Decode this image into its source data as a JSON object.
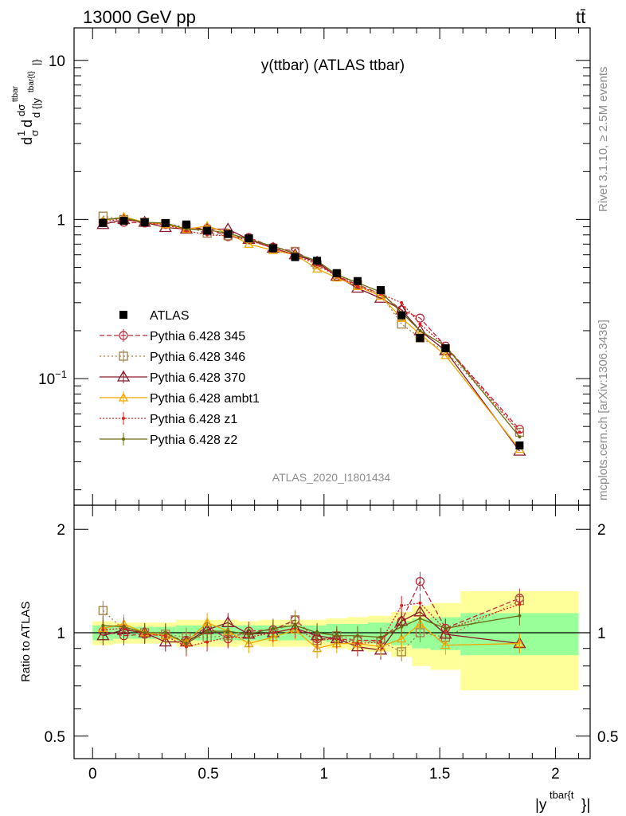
{
  "header": {
    "left": "13000 GeV pp",
    "right": "tt̄"
  },
  "main_plot": {
    "title": "y(ttbar) (ATLAS ttbar)",
    "analysis_label": "ATLAS_2020_I1801434",
    "side_label_top": "Rivet 3.1.10, ≥ 2.5M events",
    "side_label_bottom": "mcplots.cern.ch [arXiv:1306.3436]",
    "ylabel": "d1/σ dσ^ttbar / d{|y^tbar{t}|}"
  },
  "ratio_plot": {
    "ylabel": "Ratio to ATLAS"
  },
  "xlabel": "|y^tbar{t}|",
  "chart_data": [
    {
      "type": "scatter",
      "xlim": [
        -0.08,
        2.15
      ],
      "ylim": [
        0.016,
        16
      ],
      "log_y": true,
      "x_ticks": [
        "0",
        "0.5",
        "1",
        "1.5",
        "2"
      ],
      "y_ticks": [
        "10^-1",
        "1",
        "10"
      ],
      "legend_placement": "middle-left",
      "x": [
        0.045,
        0.135,
        0.225,
        0.315,
        0.405,
        0.495,
        0.585,
        0.675,
        0.78,
        0.875,
        0.97,
        1.055,
        1.145,
        1.245,
        1.335,
        1.415,
        1.525,
        1.845
      ],
      "series": [
        {
          "name": "ATLAS",
          "color": "#000000",
          "values": [
            0.95,
            0.98,
            0.96,
            0.95,
            0.93,
            0.85,
            0.81,
            0.76,
            0.66,
            0.58,
            0.55,
            0.46,
            0.41,
            0.36,
            0.25,
            0.18,
            0.155,
            0.038
          ]
        },
        {
          "name": "Pythia 6.428 345",
          "color": "#c0283c",
          "values": [
            0.96,
            0.96,
            0.95,
            0.93,
            0.88,
            0.88,
            0.78,
            0.77,
            0.67,
            0.63,
            0.53,
            0.44,
            0.39,
            0.34,
            0.27,
            0.24,
            0.16,
            0.048
          ]
        },
        {
          "name": "Pythia 6.428 346",
          "color": "#a57e44",
          "values": [
            1.05,
            1.0,
            0.96,
            0.94,
            0.9,
            0.82,
            0.79,
            0.75,
            0.66,
            0.63,
            0.52,
            0.45,
            0.39,
            0.34,
            0.22,
            0.18,
            0.15,
            0.046
          ]
        },
        {
          "name": "Pythia 6.428 370",
          "color": "#8b1a2a",
          "values": [
            0.93,
            1.0,
            0.96,
            0.89,
            0.87,
            0.87,
            0.87,
            0.75,
            0.66,
            0.6,
            0.54,
            0.44,
            0.37,
            0.32,
            0.27,
            0.2,
            0.15,
            0.035
          ]
        },
        {
          "name": "Pythia 6.428 ambt1",
          "color": "#f0a500",
          "values": [
            0.98,
            1.04,
            0.96,
            0.93,
            0.87,
            0.91,
            0.82,
            0.7,
            0.64,
            0.6,
            0.49,
            0.43,
            0.38,
            0.33,
            0.24,
            0.19,
            0.14,
            0.036
          ]
        },
        {
          "name": "Pythia 6.428 z1",
          "color": "#dd2020",
          "values": [
            0.97,
            1.01,
            0.95,
            0.93,
            0.85,
            0.8,
            0.79,
            0.74,
            0.66,
            0.6,
            0.52,
            0.44,
            0.38,
            0.34,
            0.3,
            0.22,
            0.16,
            0.046
          ]
        },
        {
          "name": "Pythia 6.428 z2",
          "color": "#6b6b10",
          "values": [
            1.0,
            1.02,
            0.96,
            0.95,
            0.87,
            0.86,
            0.82,
            0.75,
            0.68,
            0.61,
            0.55,
            0.45,
            0.4,
            0.35,
            0.26,
            0.2,
            0.16,
            0.043
          ]
        }
      ]
    },
    {
      "type": "line",
      "xlim": [
        -0.08,
        2.15
      ],
      "ylim": [
        0.43,
        2.35
      ],
      "x_ticks": [
        "0",
        "0.5",
        "1",
        "1.5",
        "2"
      ],
      "y_ticks": [
        "0.5",
        "1",
        "2"
      ],
      "band_edges": [
        0.0,
        0.09,
        0.18,
        0.27,
        0.36,
        0.45,
        0.54,
        0.63,
        0.72,
        0.83,
        0.92,
        1.01,
        1.1,
        1.19,
        1.29,
        1.38,
        1.46,
        1.59,
        2.1
      ],
      "band_green_half_width": [
        0.05,
        0.04,
        0.04,
        0.04,
        0.05,
        0.05,
        0.05,
        0.05,
        0.05,
        0.05,
        0.05,
        0.06,
        0.06,
        0.07,
        0.08,
        0.1,
        0.11,
        0.14
      ],
      "band_yellow_half_width": [
        0.08,
        0.07,
        0.07,
        0.07,
        0.09,
        0.09,
        0.09,
        0.08,
        0.09,
        0.09,
        0.09,
        0.1,
        0.11,
        0.12,
        0.15,
        0.2,
        0.22,
        0.32
      ],
      "x": [
        0.045,
        0.135,
        0.225,
        0.315,
        0.405,
        0.495,
        0.585,
        0.675,
        0.78,
        0.875,
        0.97,
        1.055,
        1.145,
        1.245,
        1.335,
        1.415,
        1.525,
        1.845
      ],
      "series": [
        {
          "name": "Pythia 6.428 345",
          "color": "#c0283c",
          "values": [
            1.01,
            0.98,
            0.99,
            0.98,
            0.95,
            1.04,
            0.96,
            1.01,
            1.02,
            1.09,
            0.96,
            0.96,
            0.95,
            0.95,
            1.08,
            1.41,
            1.03,
            1.26
          ]
        },
        {
          "name": "Pythia 6.428 346",
          "color": "#a57e44",
          "values": [
            1.16,
            1.02,
            1.0,
            0.99,
            0.97,
            0.97,
            0.98,
            0.99,
            1.0,
            1.09,
            0.95,
            0.98,
            0.95,
            0.94,
            0.88,
            1.0,
            0.97,
            1.24
          ]
        },
        {
          "name": "Pythia 6.428 370",
          "color": "#8b1a2a",
          "values": [
            0.98,
            1.02,
            1.0,
            0.94,
            0.94,
            1.02,
            1.07,
            0.99,
            1.0,
            1.03,
            0.98,
            0.96,
            0.91,
            0.89,
            1.08,
            1.15,
            0.99,
            0.93
          ]
        },
        {
          "name": "Pythia 6.428 ambt1",
          "color": "#f0a500",
          "values": [
            1.03,
            1.06,
            1.0,
            0.98,
            0.94,
            1.07,
            1.01,
            0.93,
            0.97,
            1.02,
            0.9,
            0.93,
            0.93,
            0.91,
            0.96,
            1.06,
            0.92,
            0.93
          ]
        },
        {
          "name": "Pythia 6.428 z1",
          "color": "#dd2020",
          "values": [
            1.02,
            1.03,
            0.99,
            0.98,
            0.91,
            0.94,
            0.97,
            0.97,
            1.0,
            1.03,
            0.95,
            0.96,
            0.93,
            0.94,
            1.2,
            1.22,
            1.02,
            1.21
          ]
        },
        {
          "name": "Pythia 6.428 z2",
          "color": "#6b6b10",
          "values": [
            1.05,
            1.04,
            1.0,
            1.0,
            0.93,
            1.01,
            1.01,
            0.99,
            1.03,
            1.05,
            1.0,
            0.98,
            0.98,
            0.97,
            1.04,
            1.1,
            1.03,
            1.12
          ]
        }
      ]
    }
  ]
}
